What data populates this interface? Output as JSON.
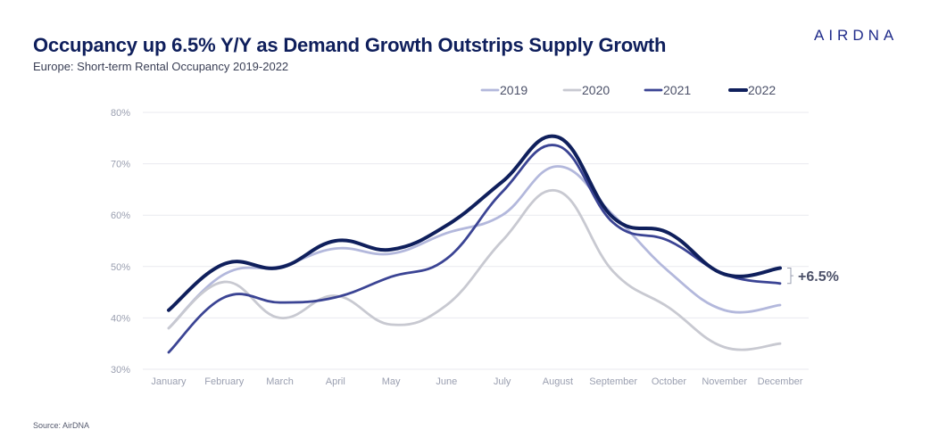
{
  "header": {
    "title": "Occupancy up 6.5% Y/Y as Demand Growth Outstrips Supply Growth",
    "subtitle": "Europe: Short-term Rental Occupancy 2019-2022",
    "logo": "AIRDNA"
  },
  "footer": {
    "source": "Source: AirDNA"
  },
  "chart_data": {
    "type": "line",
    "title": "Occupancy up 6.5% Y/Y as Demand Growth Outstrips Supply Growth",
    "subtitle": "Europe: Short-term Rental Occupancy 2019-2022",
    "categories": [
      "January",
      "February",
      "March",
      "April",
      "May",
      "June",
      "July",
      "August",
      "September",
      "October",
      "November",
      "December"
    ],
    "y_ticks": [
      "30%",
      "40%",
      "50%",
      "60%",
      "70%",
      "80%"
    ],
    "ylim": [
      30,
      80
    ],
    "grid": true,
    "legend_position": "top-right",
    "series": [
      {
        "name": "2019",
        "color": "#b3b8dc",
        "values": [
          38,
          48.5,
          50,
          53.5,
          52.5,
          56.5,
          60,
          69.5,
          60,
          49,
          41.5,
          42.5
        ]
      },
      {
        "name": "2020",
        "color": "#c8c9d1",
        "values": [
          38,
          47,
          40,
          44.3,
          38.7,
          42.5,
          55,
          64.7,
          49,
          42,
          34.3,
          35
        ]
      },
      {
        "name": "2021",
        "color": "#3b4494",
        "values": [
          33.3,
          44,
          43,
          44,
          48,
          51.5,
          64.5,
          73.5,
          58.5,
          55,
          48.5,
          46.7
        ]
      },
      {
        "name": "2022",
        "color": "#0f1f5c",
        "values": [
          41.5,
          50.5,
          49.8,
          55,
          53.3,
          58,
          66.5,
          75.2,
          59.5,
          56.5,
          48.5,
          49.7
        ]
      }
    ],
    "annotation": {
      "text": "+6.5%",
      "from_series": "2021",
      "to_series": "2022",
      "category": "December"
    }
  }
}
